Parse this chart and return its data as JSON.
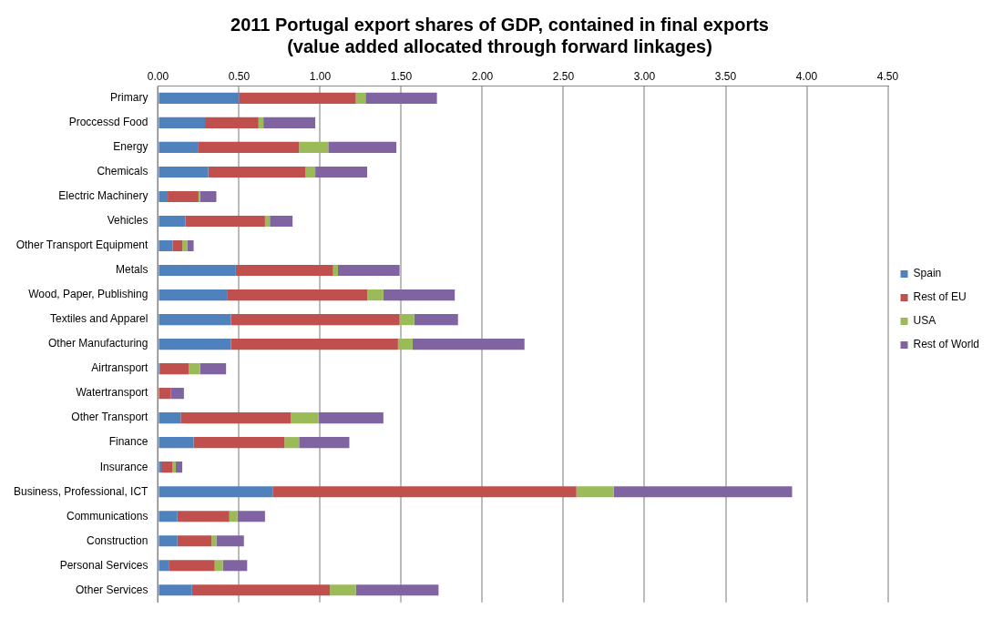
{
  "chart_data": {
    "type": "bar",
    "orientation": "horizontal",
    "stacked": true,
    "title": [
      "2011 Portugal export shares of GDP, contained in final exports",
      "(value added allocated through forward linkages)"
    ],
    "categories": [
      "Primary",
      "Proccessd Food",
      "Energy",
      "Chemicals",
      "Electric Machinery",
      "Vehicles",
      "Other Transport Equipment",
      "Metals",
      "Wood, Paper, Publishing",
      "Textiles and Apparel",
      "Other Manufacturing",
      "Airtransport",
      "Watertransport",
      "Other Transport",
      "Finance",
      "Insurance",
      "Business, Professional, ICT",
      "Communications",
      "Construction",
      "Personal Services",
      "Other Services"
    ],
    "series": [
      {
        "name": "Spain",
        "color": "#4f81bd",
        "values": [
          0.5,
          0.29,
          0.25,
          0.31,
          0.06,
          0.17,
          0.09,
          0.48,
          0.43,
          0.45,
          0.45,
          0.01,
          0,
          0.14,
          0.22,
          0.02,
          0.71,
          0.12,
          0.12,
          0.07,
          0.21
        ]
      },
      {
        "name": "Rest of EU",
        "color": "#c0504d",
        "values": [
          0.72,
          0.33,
          0.62,
          0.6,
          0.19,
          0.49,
          0.06,
          0.6,
          0.86,
          1.04,
          1.03,
          0.18,
          0.08,
          0.68,
          0.56,
          0.07,
          1.87,
          0.32,
          0.21,
          0.28,
          0.85
        ]
      },
      {
        "name": "USA",
        "color": "#9bbb59",
        "values": [
          0.06,
          0.03,
          0.18,
          0.06,
          0.01,
          0.03,
          0.03,
          0.03,
          0.1,
          0.09,
          0.09,
          0.07,
          0,
          0.17,
          0.09,
          0.02,
          0.23,
          0.05,
          0.03,
          0.05,
          0.16
        ]
      },
      {
        "name": "Rest of World",
        "color": "#8064a2",
        "values": [
          0.44,
          0.32,
          0.42,
          0.32,
          0.1,
          0.14,
          0.04,
          0.38,
          0.44,
          0.27,
          0.69,
          0.16,
          0.08,
          0.4,
          0.31,
          0.04,
          1.1,
          0.17,
          0.17,
          0.15,
          0.51
        ]
      }
    ],
    "xlim": [
      0,
      4.5
    ],
    "xticks": [
      {
        "value": 0,
        "label": "0.00"
      },
      {
        "value": 0.5,
        "label": "0.50"
      },
      {
        "value": 1,
        "label": "1.00"
      },
      {
        "value": 1.5,
        "label": "1.50"
      },
      {
        "value": 2,
        "label": "2.00"
      },
      {
        "value": 2.5,
        "label": "2.50"
      },
      {
        "value": 3,
        "label": "3.00"
      },
      {
        "value": 3.5,
        "label": "3.50"
      },
      {
        "value": 4,
        "label": "4.00"
      },
      {
        "value": 4.5,
        "label": "4.50"
      }
    ],
    "grid": "x",
    "legend": "right"
  }
}
